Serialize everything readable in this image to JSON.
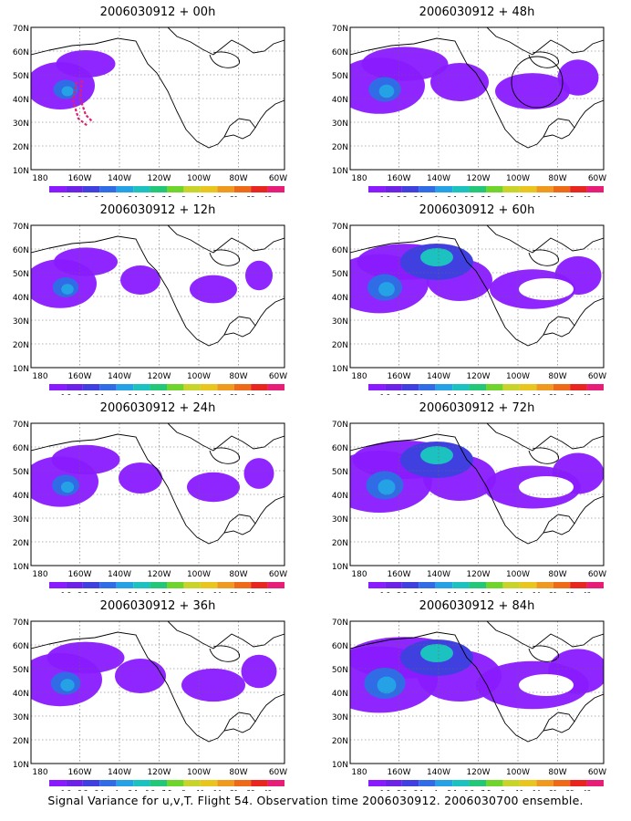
{
  "figure": {
    "caption": "Signal Variance for u,v,T. Flight 54. Observation time 2006030912. 2006030700 ensemble.",
    "colors": {
      "scale": [
        "#8a1aff",
        "#6d22e8",
        "#4040e0",
        "#2f6ce6",
        "#25a2e6",
        "#1cc2bf",
        "#22c877",
        "#6fd42c",
        "#c8d42a",
        "#e9c61e",
        "#ef9a1e",
        "#ee6a18",
        "#e8251e",
        "#e81d78"
      ],
      "land_outline": "#000000",
      "background": "#ffffff"
    },
    "colorbar_labels": [
      "1.6",
      "2.2",
      "3.1",
      "4",
      "5.1",
      "6.3",
      "7.5",
      "9",
      "11",
      "14",
      "21",
      "29",
      "40"
    ],
    "lon_labels": [
      "180",
      "160W",
      "140W",
      "120W",
      "100W",
      "80W",
      "60W"
    ],
    "lat_labels": [
      "70N",
      "60N",
      "50N",
      "40N",
      "30N",
      "20N",
      "10N"
    ],
    "panels": [
      {
        "id": "00h",
        "title": "2006030912 + 00h",
        "intensity": 0.25,
        "flight_track": true,
        "circle": false
      },
      {
        "id": "48h",
        "title": "2006030912 + 48h",
        "intensity": 0.55,
        "flight_track": false,
        "circle": true
      },
      {
        "id": "12h",
        "title": "2006030912 + 12h",
        "intensity": 0.3,
        "flight_track": false,
        "circle": false
      },
      {
        "id": "60h",
        "title": "2006030912 + 60h",
        "intensity": 0.65,
        "flight_track": false,
        "circle": false
      },
      {
        "id": "24h",
        "title": "2006030912 + 24h",
        "intensity": 0.35,
        "flight_track": false,
        "circle": false
      },
      {
        "id": "72h",
        "title": "2006030912 + 72h",
        "intensity": 0.75,
        "flight_track": false,
        "circle": false
      },
      {
        "id": "36h",
        "title": "2006030912 + 36h",
        "intensity": 0.45,
        "flight_track": false,
        "circle": false
      },
      {
        "id": "84h",
        "title": "2006030912 + 84h",
        "intensity": 0.9,
        "flight_track": false,
        "circle": false
      }
    ]
  }
}
